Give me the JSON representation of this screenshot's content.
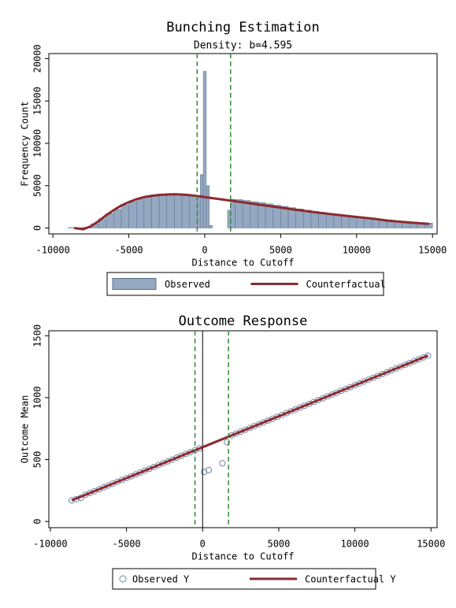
{
  "chart_data": [
    {
      "type": "histogram",
      "title": "Bunching Estimation",
      "subtitle": "Density: b=4.595",
      "xlabel": "Distance to Cutoff",
      "ylabel": "Frequency Count",
      "xlim": [
        -10270,
        15300
      ],
      "ylim": [
        -700,
        20600
      ],
      "xticks": [
        -10000,
        -5000,
        0,
        5000,
        10000,
        15000
      ],
      "yticks": [
        0,
        5000,
        10000,
        15000,
        20000
      ],
      "bins": [
        -9000,
        -8500,
        -8000,
        -7500,
        -7000,
        -6500,
        -6000,
        -5500,
        -5000,
        -4500,
        -4000,
        -3500,
        -3000,
        -2500,
        -2000,
        -1500,
        -1000,
        -500,
        -300,
        -100,
        100,
        300,
        500,
        1000,
        1500,
        1700,
        2000,
        2500,
        3000,
        3500,
        4000,
        4500,
        5000,
        5500,
        6000,
        6500,
        7000,
        7500,
        8000,
        8500,
        9000,
        9500,
        10000,
        10500,
        11000,
        11500,
        12000,
        12500,
        13000,
        13500,
        14000,
        14500,
        15000
      ],
      "vlines": [
        -500,
        1700
      ],
      "vline_color": "#2e8b2e",
      "series": [
        {
          "name": "Observed",
          "type": "histogram",
          "color": "#95a8c2",
          "edge_color": "#5d708c",
          "values": [
            50,
            30,
            100,
            500,
            1100,
            1700,
            2200,
            2700,
            3100,
            3400,
            3600,
            3750,
            3850,
            3900,
            3900,
            3850,
            3800,
            3800,
            6300,
            18500,
            5000,
            300,
            0,
            0,
            2100,
            3400,
            3350,
            3250,
            3100,
            3000,
            2850,
            2700,
            2550,
            2400,
            2250,
            2100,
            1950,
            1850,
            1700,
            1600,
            1450,
            1350,
            1250,
            1150,
            1050,
            980,
            900,
            820,
            760,
            700,
            640,
            580
          ]
        },
        {
          "name": "Counterfactual",
          "type": "line",
          "color": "#8b2a2e",
          "x": [
            -8600,
            -8000,
            -7500,
            -7000,
            -6500,
            -6000,
            -5500,
            -5000,
            -4500,
            -4000,
            -3500,
            -3000,
            -2500,
            -2000,
            -1500,
            -1000,
            -500,
            0,
            500,
            1000,
            1500,
            2000,
            3000,
            4000,
            5000,
            6000,
            7000,
            8000,
            9000,
            10000,
            11000,
            12000,
            13000,
            14000,
            14800
          ],
          "values": [
            0,
            -150,
            200,
            800,
            1500,
            2100,
            2650,
            3050,
            3400,
            3650,
            3800,
            3900,
            3950,
            3980,
            3950,
            3880,
            3780,
            3650,
            3520,
            3400,
            3280,
            3160,
            2900,
            2650,
            2400,
            2150,
            1920,
            1700,
            1500,
            1300,
            1120,
            880,
            720,
            580,
            480
          ]
        }
      ]
    },
    {
      "type": "scatter",
      "title": "Outcome Response",
      "xlabel": "Distance to Cutoff",
      "ylabel": "Outcome Mean",
      "xlim": [
        -10100,
        15400
      ],
      "ylim": [
        -50,
        1540
      ],
      "xticks": [
        -10000,
        -5000,
        0,
        5000,
        10000,
        15000
      ],
      "yticks": [
        0,
        500,
        1000,
        1500
      ],
      "vlines": [
        -500,
        1700
      ],
      "vline_color": "#2e8b2e",
      "cutoff": 0,
      "series": [
        {
          "name": "Observed Y",
          "type": "scatter",
          "color": "#7086a6",
          "x": [
            -8600,
            -8300,
            -8000,
            -7700,
            -7400,
            -7100,
            -6800,
            -6500,
            -6200,
            -5900,
            -5600,
            -5300,
            -5000,
            -4700,
            -4400,
            -4100,
            -3800,
            -3500,
            -3200,
            -2900,
            -2600,
            -2300,
            -2000,
            -1700,
            -1400,
            -1100,
            -800,
            -500,
            -200,
            100,
            400,
            1300,
            1600,
            1900,
            2200,
            2500,
            2800,
            3100,
            3400,
            3700,
            4000,
            4300,
            4600,
            4900,
            5200,
            5500,
            5800,
            6100,
            6400,
            6700,
            7000,
            7300,
            7600,
            7900,
            8200,
            8500,
            8800,
            9100,
            9400,
            9700,
            10000,
            10300,
            10600,
            10900,
            11200,
            11500,
            11800,
            12100,
            12400,
            12700,
            13000,
            13300,
            13600,
            13900,
            14200,
            14500,
            14800
          ],
          "values": [
            170,
            180,
            190,
            215,
            230,
            245,
            260,
            275,
            290,
            305,
            320,
            335,
            350,
            365,
            380,
            395,
            410,
            425,
            440,
            455,
            470,
            485,
            500,
            515,
            530,
            545,
            560,
            575,
            590,
            400,
            415,
            470,
            640,
            695,
            710,
            725,
            740,
            755,
            770,
            785,
            800,
            815,
            830,
            845,
            860,
            875,
            890,
            905,
            920,
            935,
            950,
            965,
            980,
            995,
            1010,
            1025,
            1040,
            1055,
            1070,
            1085,
            1100,
            1115,
            1130,
            1145,
            1160,
            1175,
            1190,
            1205,
            1220,
            1235,
            1250,
            1265,
            1280,
            1295,
            1310,
            1325,
            1340
          ]
        },
        {
          "name": "Counterfactual Y",
          "type": "line",
          "color": "#8b2a2e",
          "x": [
            -8600,
            0,
            14800
          ],
          "values": [
            170,
            600,
            1340
          ]
        }
      ]
    }
  ]
}
